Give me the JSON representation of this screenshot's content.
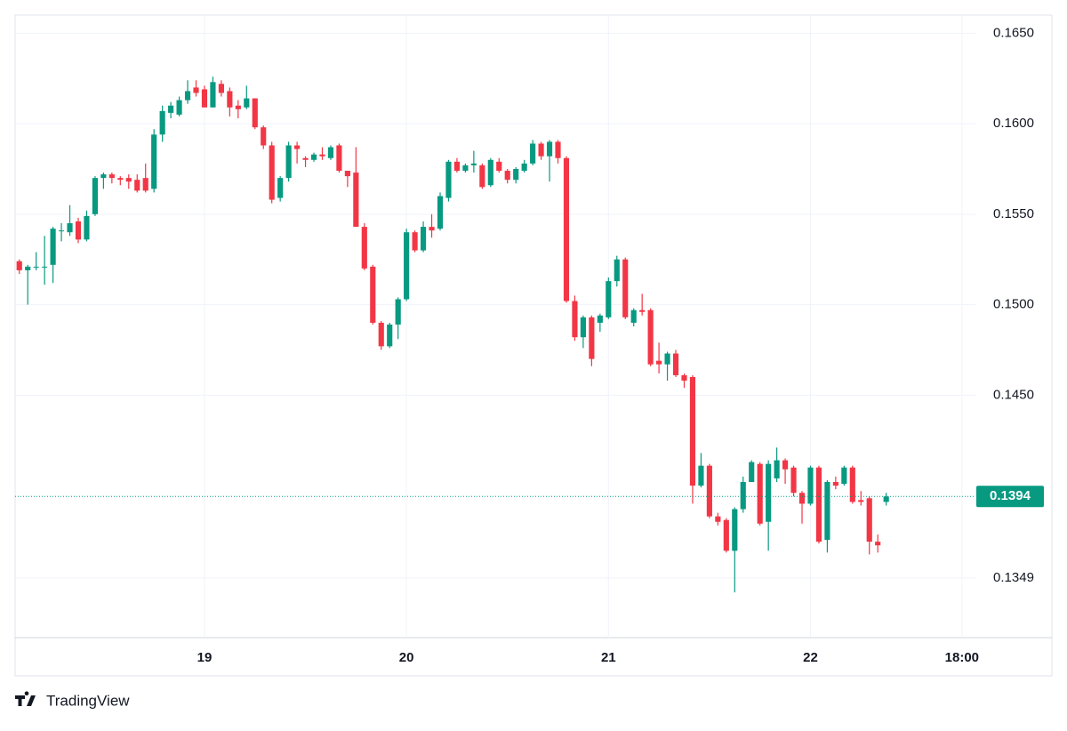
{
  "chart_data": {
    "type": "candlestick",
    "x": [
      -22,
      -21,
      -20,
      -19,
      -18,
      -17,
      -16,
      -15,
      -14,
      -13,
      -12,
      -11,
      -10,
      -9,
      -8,
      -7,
      -6,
      -5,
      -4,
      -3,
      -2,
      -1,
      0,
      1,
      2,
      3,
      4,
      5,
      6,
      7,
      8,
      9,
      10,
      11,
      12,
      13,
      14,
      15,
      16,
      17,
      18,
      19,
      20,
      21,
      22,
      23,
      24,
      25,
      26,
      27,
      28,
      29,
      30,
      31,
      32,
      33,
      34,
      35,
      36,
      37,
      38,
      39,
      40,
      41,
      42,
      43,
      44,
      45,
      46,
      47,
      48,
      49,
      50,
      51,
      52,
      53,
      54,
      55,
      56,
      57,
      58,
      59,
      60,
      61,
      62,
      63,
      64,
      65,
      66,
      67,
      68,
      69,
      70,
      71,
      72,
      73,
      74,
      75,
      76,
      77,
      78,
      79,
      80,
      81
    ],
    "open": [
      0.1524,
      0.1519,
      0.1521,
      0.1521,
      0.1522,
      0.1541,
      0.154,
      0.1546,
      0.1536,
      0.155,
      0.157,
      0.1572,
      0.157,
      0.157,
      0.1569,
      0.157,
      0.1564,
      0.1594,
      0.1606,
      0.1605,
      0.1613,
      0.162,
      0.1619,
      0.1609,
      0.1622,
      0.1618,
      0.161,
      0.1609,
      0.1614,
      0.1598,
      0.1588,
      0.1559,
      0.157,
      0.1588,
      0.1581,
      0.158,
      0.1583,
      0.1581,
      0.1588,
      0.1574,
      0.1573,
      0.1543,
      0.1521,
      0.149,
      0.1477,
      0.1489,
      0.1503,
      0.154,
      0.153,
      0.1543,
      0.1542,
      0.1559,
      0.1579,
      0.1574,
      0.1577,
      0.1577,
      0.1566,
      0.1579,
      0.1574,
      0.1569,
      0.1574,
      0.1578,
      0.1589,
      0.1582,
      0.159,
      0.1581,
      0.1502,
      0.1482,
      0.1493,
      0.149,
      0.1493,
      0.1513,
      0.1525,
      0.149,
      0.1497,
      0.1497,
      0.1469,
      0.1467,
      0.1473,
      0.1461,
      0.146,
      0.14,
      0.1411,
      0.1383,
      0.1381,
      0.1364,
      0.1387,
      0.1402,
      0.1412,
      0.138,
      0.1404,
      0.1414,
      0.141,
      0.1396,
      0.139,
      0.141,
      0.137,
      0.1402,
      0.1401,
      0.141,
      0.1392,
      0.1393,
      0.1369,
      0.1391
    ],
    "high": [
      0.1525,
      0.1522,
      0.1529,
      0.1538,
      0.1543,
      0.1545,
      0.1555,
      0.1548,
      0.1552,
      0.1571,
      0.1573,
      0.1573,
      0.1571,
      0.1572,
      0.1572,
      0.1578,
      0.1597,
      0.161,
      0.1612,
      0.1615,
      0.1624,
      0.1624,
      0.1621,
      0.1626,
      0.1624,
      0.162,
      0.1613,
      0.1621,
      0.1614,
      0.1599,
      0.159,
      0.1571,
      0.159,
      0.159,
      0.1582,
      0.1584,
      0.1587,
      0.1588,
      0.1589,
      0.1574,
      0.1587,
      0.1545,
      0.1522,
      0.1491,
      0.149,
      0.1504,
      0.1542,
      0.1541,
      0.1546,
      0.155,
      0.1562,
      0.158,
      0.1581,
      0.1578,
      0.1585,
      0.1578,
      0.1581,
      0.1581,
      0.1575,
      0.1576,
      0.158,
      0.1591,
      0.159,
      0.1591,
      0.1591,
      0.1582,
      0.1505,
      0.1494,
      0.1494,
      0.1495,
      0.1515,
      0.1527,
      0.1526,
      0.1498,
      0.1506,
      0.1498,
      0.1479,
      0.1474,
      0.1475,
      0.1462,
      0.1461,
      0.1418,
      0.1412,
      0.1385,
      0.1382,
      0.1388,
      0.1405,
      0.1414,
      0.1413,
      0.1414,
      0.1421,
      0.1415,
      0.1411,
      0.1397,
      0.1411,
      0.1411,
      0.1403,
      0.1405,
      0.1411,
      0.1411,
      0.1397,
      0.1394,
      0.1373,
      0.1396
    ],
    "low": [
      0.1517,
      0.15,
      0.1519,
      0.1511,
      0.1512,
      0.1535,
      0.1538,
      0.1534,
      0.1535,
      0.1549,
      0.1564,
      0.1567,
      0.1566,
      0.1564,
      0.1562,
      0.1562,
      0.1562,
      0.159,
      0.1603,
      0.1604,
      0.1611,
      0.1615,
      0.1609,
      0.1609,
      0.1615,
      0.1604,
      0.1603,
      0.1608,
      0.1597,
      0.1586,
      0.1556,
      0.1557,
      0.1568,
      0.1578,
      0.1576,
      0.1579,
      0.158,
      0.158,
      0.1573,
      0.1565,
      0.1543,
      0.1519,
      0.1489,
      0.1475,
      0.1476,
      0.1481,
      0.1502,
      0.1529,
      0.1529,
      0.1537,
      0.1541,
      0.1557,
      0.1573,
      0.1573,
      0.1573,
      0.1564,
      0.1565,
      0.1573,
      0.1567,
      0.1567,
      0.1573,
      0.1577,
      0.158,
      0.1568,
      0.1578,
      0.1501,
      0.148,
      0.1476,
      0.1466,
      0.1485,
      0.1492,
      0.151,
      0.1492,
      0.1488,
      0.1494,
      0.1466,
      0.1462,
      0.1458,
      0.146,
      0.1454,
      0.139,
      0.1399,
      0.1382,
      0.1378,
      0.1363,
      0.1341,
      0.1385,
      0.1402,
      0.1378,
      0.1364,
      0.1402,
      0.1401,
      0.1394,
      0.1379,
      0.1389,
      0.1368,
      0.1363,
      0.1398,
      0.14,
      0.139,
      0.1389,
      0.1362,
      0.1363,
      0.1389
    ],
    "close": [
      0.1519,
      0.1521,
      0.1521,
      0.1521,
      0.1542,
      0.1541,
      0.1545,
      0.1536,
      0.1549,
      0.157,
      0.1572,
      0.157,
      0.1569,
      0.1568,
      0.1563,
      0.1563,
      0.1594,
      0.1607,
      0.161,
      0.1613,
      0.1618,
      0.1617,
      0.1609,
      0.1623,
      0.1617,
      0.1609,
      0.1608,
      0.1614,
      0.1598,
      0.1588,
      0.1558,
      0.157,
      0.1588,
      0.1586,
      0.158,
      0.1583,
      0.1582,
      0.1587,
      0.1574,
      0.1571,
      0.1543,
      0.152,
      0.149,
      0.1477,
      0.1489,
      0.1503,
      0.154,
      0.153,
      0.1543,
      0.1541,
      0.156,
      0.1579,
      0.1574,
      0.1577,
      0.1578,
      0.1565,
      0.158,
      0.1574,
      0.1569,
      0.1575,
      0.1578,
      0.1589,
      0.1582,
      0.159,
      0.1581,
      0.1502,
      0.1482,
      0.1493,
      0.147,
      0.1494,
      0.1513,
      0.1525,
      0.1493,
      0.1497,
      0.1496,
      0.1467,
      0.1467,
      0.1473,
      0.1461,
      0.1458,
      0.14,
      0.1411,
      0.1383,
      0.138,
      0.1364,
      0.1387,
      0.1402,
      0.1413,
      0.1379,
      0.1412,
      0.1414,
      0.1409,
      0.1396,
      0.139,
      0.141,
      0.1369,
      0.1402,
      0.14,
      0.141,
      0.1391,
      0.1391,
      0.1369,
      0.1367,
      0.1394
    ],
    "up_color": "#089981",
    "down_color": "#f23645",
    "xlim": [
      -22.5,
      91.6
    ],
    "xticks": [
      {
        "value": 0,
        "label": "19"
      },
      {
        "value": 24,
        "label": "20"
      },
      {
        "value": 48,
        "label": "21"
      },
      {
        "value": 72,
        "label": "22"
      },
      {
        "value": 90,
        "label": "18:00"
      }
    ],
    "ylim": [
      0.1316,
      0.166
    ],
    "yticks": [
      {
        "value": 0.165,
        "label": "0.1650"
      },
      {
        "value": 0.16,
        "label": "0.1600"
      },
      {
        "value": 0.155,
        "label": "0.1550"
      },
      {
        "value": 0.15,
        "label": "0.1500"
      },
      {
        "value": 0.145,
        "label": "0.1450"
      },
      0.1349
    ],
    "grid": true,
    "last_price": 0.1394
  },
  "branding": "TradingView"
}
